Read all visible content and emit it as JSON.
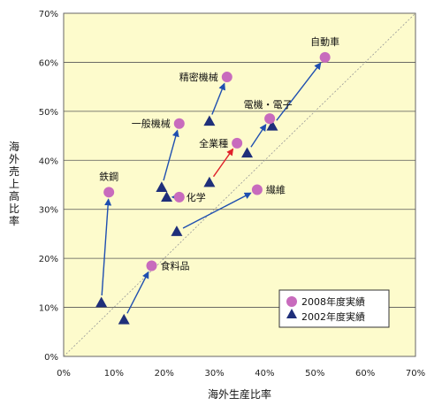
{
  "chart_data": {
    "type": "scatter",
    "title": "",
    "xlabel": "海外生産比率",
    "ylabel": "海外売上高比率",
    "xlim": [
      0,
      70
    ],
    "ylim": [
      0,
      70
    ],
    "x_ticks": [
      "0%",
      "10%",
      "20%",
      "30%",
      "40%",
      "50%",
      "60%",
      "70%"
    ],
    "y_ticks": [
      "0%",
      "10%",
      "20%",
      "30%",
      "40%",
      "50%",
      "60%",
      "70%"
    ],
    "grid": "horizontal",
    "diagonal_reference": true,
    "legend_position": "bottom-right",
    "series": [
      {
        "name": "2008年度実績",
        "marker": "circle",
        "color": "#c86bbd"
      },
      {
        "name": "2002年度実績",
        "marker": "triangle",
        "color": "#1f2f7a"
      }
    ],
    "categories": [
      {
        "label": "自動車",
        "x2002": 41.5,
        "y2002": 47.0,
        "x2008": 52.0,
        "y2008": 61.0,
        "arrow_color": "#1f4fb0"
      },
      {
        "label": "精密機械",
        "x2002": 29.0,
        "y2002": 48.0,
        "x2008": 32.5,
        "y2008": 57.0,
        "arrow_color": "#1f4fb0"
      },
      {
        "label": "電機・電子",
        "x2002": 36.5,
        "y2002": 41.5,
        "x2008": 41.0,
        "y2008": 48.5,
        "arrow_color": "#1f4fb0"
      },
      {
        "label": "一般機械",
        "x2002": 19.5,
        "y2002": 34.5,
        "x2008": 23.0,
        "y2008": 47.5,
        "arrow_color": "#1f4fb0"
      },
      {
        "label": "全業種",
        "x2002": 29.0,
        "y2002": 35.5,
        "x2008": 34.5,
        "y2008": 43.5,
        "arrow_color": "#e0202a"
      },
      {
        "label": "繊維",
        "x2002": 22.5,
        "y2002": 25.5,
        "x2008": 38.5,
        "y2008": 34.0,
        "arrow_color": "#1f4fb0"
      },
      {
        "label": "化学",
        "x2002": 20.5,
        "y2002": 32.5,
        "x2008": 23.0,
        "y2008": 32.5,
        "arrow_color": "#1f4fb0"
      },
      {
        "label": "鉄鋼",
        "x2002": 7.5,
        "y2002": 11.0,
        "x2008": 9.0,
        "y2008": 33.5,
        "arrow_color": "#1f4fb0"
      },
      {
        "label": "食料品",
        "x2002": 12.0,
        "y2002": 7.5,
        "x2008": 17.5,
        "y2008": 18.5,
        "arrow_color": "#1f4fb0"
      }
    ]
  }
}
